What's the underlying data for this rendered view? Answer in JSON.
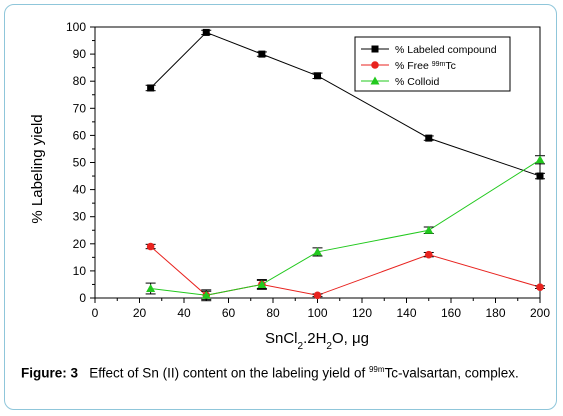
{
  "chart_data": {
    "type": "line",
    "xlabel": "SnCl₂.2H₂O, μg",
    "ylabel": "% Labeling yield",
    "xlim": [
      0,
      200
    ],
    "ylim": [
      0,
      100
    ],
    "xticks": [
      0,
      20,
      40,
      60,
      80,
      100,
      120,
      140,
      160,
      180,
      200
    ],
    "yticks": [
      0,
      10,
      20,
      30,
      40,
      50,
      60,
      70,
      80,
      90,
      100
    ],
    "grid": false,
    "legend_position": "top-right",
    "series": [
      {
        "name": "% Labeled compound",
        "marker": "square",
        "color": "#000000",
        "x": [
          25,
          50,
          75,
          100,
          150,
          200
        ],
        "y": [
          77.5,
          98,
          90,
          82,
          59,
          45
        ],
        "err": [
          1,
          0.8,
          0.8,
          1,
          0.8,
          1
        ]
      },
      {
        "name": "% Free 99mTc",
        "marker": "circle",
        "color": "#e8231f",
        "x": [
          25,
          50,
          75,
          100,
          150,
          200
        ],
        "y": [
          19,
          1,
          5,
          1,
          16,
          4
        ],
        "err": [
          0.8,
          2,
          1.5,
          0.5,
          0.8,
          0.5
        ]
      },
      {
        "name": "% Colloid",
        "marker": "triangle",
        "color": "#22c91e",
        "x": [
          25,
          50,
          75,
          100,
          150,
          200
        ],
        "y": [
          3.5,
          1,
          5,
          17,
          25,
          51
        ],
        "err": [
          2,
          1.5,
          1.8,
          1.5,
          1.2,
          1.5
        ]
      }
    ]
  },
  "caption": {
    "label": "Figure: 3",
    "text_before": "Effect of Sn (II) content on the labeling yield of ",
    "sup": "99m",
    "text_after": "Tc-valsartan, complex."
  }
}
